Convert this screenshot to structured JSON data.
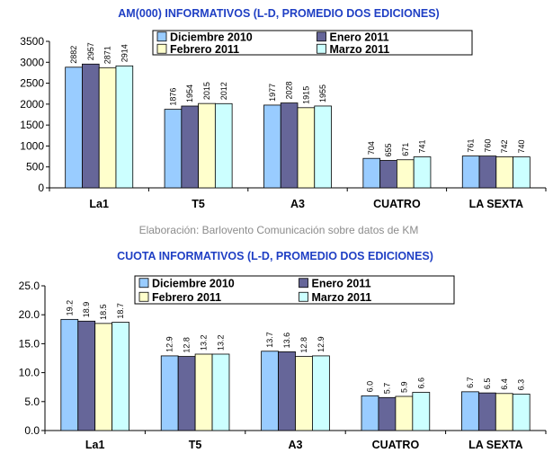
{
  "source_note": "Elaboración: Barlovento Comunicación sobre datos de KM",
  "series_colors": [
    "#99ccff",
    "#666699",
    "#ffffcc",
    "#ccffff"
  ],
  "chart_data": [
    {
      "type": "bar",
      "title": "AM(000) INFORMATIVOS (L-D, PROMEDIO DOS EDICIONES)",
      "categories": [
        "La1",
        "T5",
        "A3",
        "CUATRO",
        "LA SEXTA"
      ],
      "yticks": [
        "0",
        "500",
        "1000",
        "1500",
        "2000",
        "2500",
        "3000",
        "3500"
      ],
      "ylim": [
        0,
        3500
      ],
      "legend": "top-right",
      "series": [
        {
          "name": "Diciembre 2010",
          "values": [
            2882,
            1876,
            1977,
            704,
            761
          ],
          "labels": [
            "2882",
            "1876",
            "1977",
            "704",
            "761"
          ]
        },
        {
          "name": "Enero 2011",
          "values": [
            2957,
            1954,
            2028,
            655,
            760
          ],
          "labels": [
            "2957",
            "1954",
            "2028",
            "655",
            "760"
          ]
        },
        {
          "name": "Febrero 2011",
          "values": [
            2871,
            2015,
            1915,
            671,
            742
          ],
          "labels": [
            "2871",
            "2015",
            "1915",
            "671",
            "742"
          ]
        },
        {
          "name": "Marzo 2011",
          "values": [
            2914,
            2012,
            1955,
            741,
            740
          ],
          "labels": [
            "2914",
            "2012",
            "1955",
            "741",
            "740"
          ]
        }
      ]
    },
    {
      "type": "bar",
      "title": "CUOTA INFORMATIVOS (L-D, PROMEDIO DOS EDICIONES)",
      "categories": [
        "La1",
        "T5",
        "A3",
        "CUATRO",
        "LA SEXTA"
      ],
      "yticks": [
        "0.0",
        "5.0",
        "10.0",
        "15.0",
        "20.0",
        "25.0"
      ],
      "ylim": [
        0,
        25
      ],
      "legend": "top-right",
      "series": [
        {
          "name": "Diciembre 2010",
          "values": [
            19.2,
            12.9,
            13.7,
            6.0,
            6.7
          ],
          "labels": [
            "19.2",
            "12.9",
            "13.7",
            "6.0",
            "6.7"
          ]
        },
        {
          "name": "Enero 2011",
          "values": [
            18.9,
            12.8,
            13.6,
            5.7,
            6.5
          ],
          "labels": [
            "18.9",
            "12.8",
            "13.6",
            "5.7",
            "6.5"
          ]
        },
        {
          "name": "Febrero 2011",
          "values": [
            18.5,
            13.2,
            12.8,
            5.9,
            6.4
          ],
          "labels": [
            "18.5",
            "13.2",
            "12.8",
            "5.9",
            "6.4"
          ]
        },
        {
          "name": "Marzo 2011",
          "values": [
            18.7,
            13.2,
            12.9,
            6.6,
            6.3
          ],
          "labels": [
            "18.7",
            "13.2",
            "12.9",
            "6.6",
            "6.3"
          ]
        }
      ]
    }
  ]
}
